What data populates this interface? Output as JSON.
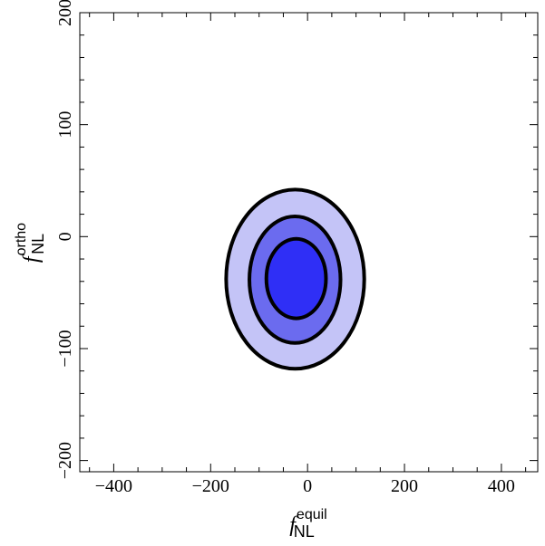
{
  "chart_data": {
    "type": "contour",
    "xlabel": {
      "symbol": "f",
      "subscript": "NL",
      "superscript": "equil"
    },
    "ylabel": {
      "symbol": "f",
      "subscript": "NL",
      "superscript": "ortho"
    },
    "xlim": [
      -470,
      475
    ],
    "ylim": [
      -210,
      200
    ],
    "xticks": [
      -400,
      -200,
      0,
      200,
      400
    ],
    "xtick_labels": [
      "−400",
      "−200",
      "0",
      "200",
      "400"
    ],
    "yticks": [
      -200,
      -100,
      0,
      100,
      200
    ],
    "ytick_labels": [
      "−200",
      "−100",
      "0",
      "100",
      "200"
    ],
    "x_minor_step": 50,
    "y_minor_step": 20,
    "grid": false,
    "contours": [
      {
        "level": "outer",
        "x_range": [
          -168,
          117
        ],
        "y_range": [
          -118,
          42
        ],
        "fill": "#c4c4f7"
      },
      {
        "level": "middle",
        "x_range": [
          -120,
          68
        ],
        "y_range": [
          -95,
          18
        ],
        "fill": "#6b6bef"
      },
      {
        "level": "inner",
        "x_range": [
          -85,
          38
        ],
        "y_range": [
          -73,
          -2
        ],
        "fill": "#2f2ff6"
      }
    ]
  }
}
